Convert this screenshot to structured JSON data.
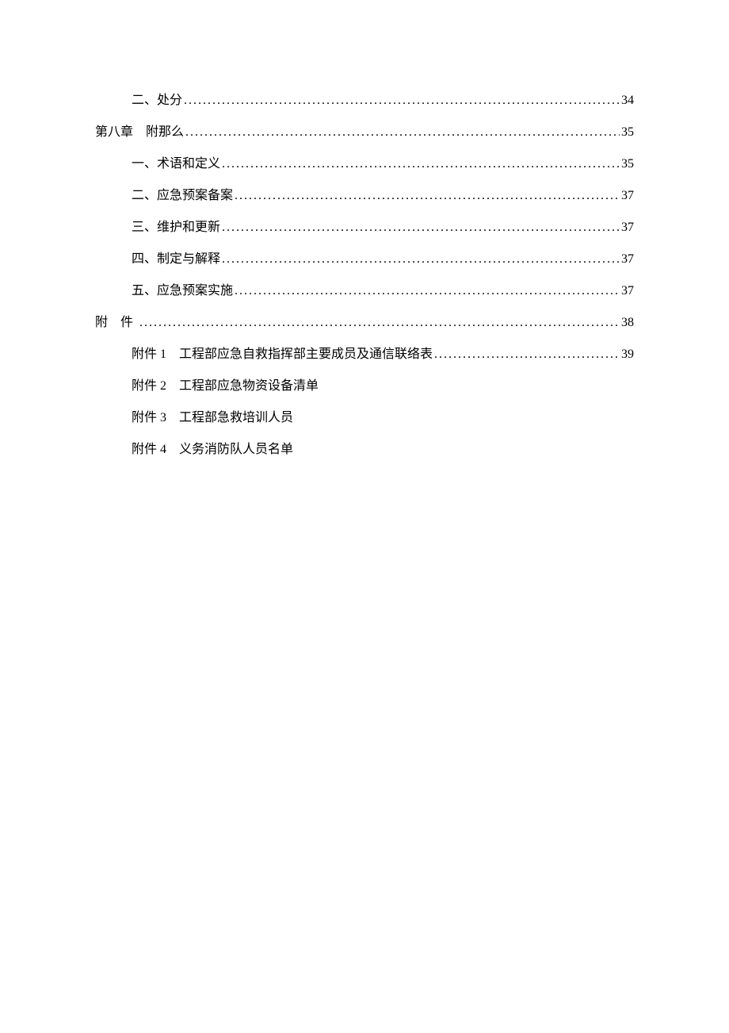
{
  "background_color": "#ffffff",
  "text_color": "#000000",
  "font_family": "SimSun",
  "base_font_size_pt": 12,
  "entries": [
    {
      "level": 1,
      "label": "二、处分",
      "page": "34",
      "has_page": true
    },
    {
      "level": 0,
      "label": "第八章　附那么",
      "page": "35",
      "has_page": true
    },
    {
      "level": 1,
      "label": "一、术语和定义",
      "page": "35",
      "has_page": true
    },
    {
      "level": 1,
      "label": "二、应急预案备案",
      "page": "37",
      "has_page": true
    },
    {
      "level": 1,
      "label": "三、维护和更新",
      "page": "37",
      "has_page": true
    },
    {
      "level": 1,
      "label": "四、制定与解释",
      "page": "37",
      "has_page": true
    },
    {
      "level": 1,
      "label": "五、应急预案实施",
      "page": "37",
      "has_page": true
    },
    {
      "level": 0,
      "label": "附 件",
      "page": "38",
      "has_page": true,
      "spaced": true
    },
    {
      "level": 1,
      "label": "附件 1　工程部应急自救指挥部主要成员及通信联络表",
      "page": "39",
      "has_page": true
    },
    {
      "level": 1,
      "label": "附件 2　工程部应急物资设备清单",
      "page": "",
      "has_page": false
    },
    {
      "level": 1,
      "label": "附件 3　工程部急救培训人员",
      "page": "",
      "has_page": false
    },
    {
      "level": 1,
      "label": "附件 4　义务消防队人员名单",
      "page": "",
      "has_page": false
    }
  ]
}
